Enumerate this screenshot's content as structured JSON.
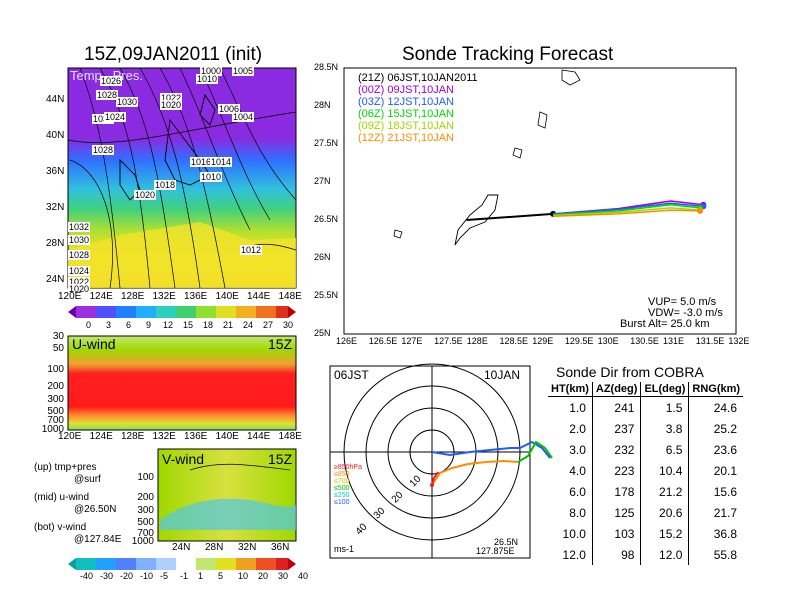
{
  "colors": {
    "purple": "#9b00e0",
    "blue": "#1e5cff",
    "green": "#00d800",
    "yellowgreen": "#a0d800",
    "orange": "#ff8c00",
    "red": "#ff1a1a",
    "black": "#000000"
  },
  "surface": {
    "title": "15Z,09JAN2011 (init)",
    "overlay": "Temp., Pres.",
    "xticks": [
      "120E",
      "124E",
      "128E",
      "132E",
      "136E",
      "140E",
      "144E",
      "148E"
    ],
    "yticks": [
      "44N",
      "40N",
      "36N",
      "32N",
      "28N",
      "24N"
    ],
    "isobars": [
      "1000",
      "1005",
      "1010",
      "1028",
      "1030",
      "1026",
      "1022",
      "1020",
      "1032",
      "1024",
      "1006",
      "1004",
      "1028",
      "1016",
      "1014",
      "1018",
      "1010",
      "1020",
      "1012",
      "1032",
      "1030",
      "1028",
      "1024",
      "1022",
      "1020"
    ],
    "colorbar": [
      "0",
      "3",
      "6",
      "9",
      "12",
      "15",
      "18",
      "21",
      "24",
      "27",
      "30"
    ]
  },
  "uwind": {
    "label": "U-wind",
    "time": "15Z",
    "yticks": [
      "30",
      "50",
      "100",
      "200",
      "300",
      "500",
      "700",
      "1000"
    ],
    "xticks": [
      "120E",
      "124E",
      "128E",
      "132E",
      "136E",
      "140E",
      "144E",
      "148E"
    ]
  },
  "vwind": {
    "label": "V-wind",
    "time": "15Z",
    "yticks": [
      "100",
      "200",
      "300",
      "500",
      "700",
      "1000"
    ],
    "xticks": [
      "24N",
      "28N",
      "32N",
      "36N"
    ],
    "colorbar": [
      "-40",
      "-30",
      "-20",
      "-10",
      "-5",
      "-1",
      "1",
      "5",
      "10",
      "20",
      "30",
      "40"
    ]
  },
  "legend_notes": {
    "up": "(up) tmp+pres",
    "up2": "@surf",
    "mid": "(mid) u-wind",
    "mid2": "@26.50N",
    "bot": "(bot) v-wind",
    "bot2": "@127.84E"
  },
  "track": {
    "title": "Sonde Tracking Forecast",
    "entries": [
      {
        "label": "(21Z)  06JST,10JAN2011",
        "color": "#000000"
      },
      {
        "label": "(00Z)  09JST,10JAN",
        "color": "#9b00e0"
      },
      {
        "label": "(03Z)  12JST,10JAN",
        "color": "#1e5cff"
      },
      {
        "label": "(06Z)  15JST,10JAN",
        "color": "#00d800"
      },
      {
        "label": "(09Z)  18JST,10JAN",
        "color": "#a0d800"
      },
      {
        "label": "(12Z)  21JST,10JAN",
        "color": "#ff8c00"
      }
    ],
    "params": {
      "vup": "VUP=  5.0  m/s",
      "vdw": "VDW= -3.0  m/s",
      "burst": "Burst Alt=  25.0  km"
    },
    "xlim": [
      126,
      132
    ],
    "ylim": [
      25,
      28.5
    ],
    "xticks": [
      "126E",
      "126.5E",
      "127E",
      "127.5E",
      "128E",
      "128.5E",
      "129E",
      "129.5E",
      "130E",
      "130.5E",
      "131E",
      "131.5E",
      "132E"
    ],
    "yticks": [
      "28.5N",
      "28N",
      "27.5N",
      "27N",
      "26.5N",
      "26N",
      "25.5N",
      "25N"
    ]
  },
  "polar": {
    "left": "06JST",
    "right": "10JAN",
    "ring_labels": [
      "10",
      "20",
      "30",
      "40"
    ],
    "levels": [
      {
        "t": "≥850hPa",
        "c": "#ff1a1a"
      },
      {
        "t": "≤850",
        "c": "#ff8c00"
      },
      {
        "t": "≤700",
        "c": "#d8c800"
      },
      {
        "t": "≤500",
        "c": "#00c000"
      },
      {
        "t": "≤250",
        "c": "#00c8c8"
      },
      {
        "t": "≤100",
        "c": "#1e5cff"
      }
    ],
    "unit": "ms-1",
    "lat": "26.5N",
    "lon": "127.875E"
  },
  "direction": {
    "title": "Sonde Dir from COBRA",
    "headers": [
      "HT(km)",
      "AZ(deg)",
      "EL(deg)",
      "RNG(km)"
    ],
    "rows": [
      [
        "1.0",
        "241",
        "1.5",
        "24.6"
      ],
      [
        "2.0",
        "237",
        "3.8",
        "25.2"
      ],
      [
        "3.0",
        "232",
        "6.5",
        "23.6"
      ],
      [
        "4.0",
        "223",
        "10.4",
        "20.1"
      ],
      [
        "6.0",
        "178",
        "21.2",
        "15.6"
      ],
      [
        "8.0",
        "125",
        "20.6",
        "21.7"
      ],
      [
        "10.0",
        "103",
        "15.2",
        "36.8"
      ],
      [
        "12.0",
        "98",
        "12.0",
        "55.8"
      ]
    ]
  },
  "chart_data": [
    {
      "type": "table",
      "title": "Sonde Dir from COBRA",
      "columns": [
        "HT(km)",
        "AZ(deg)",
        "EL(deg)",
        "RNG(km)"
      ],
      "rows": [
        [
          1.0,
          241,
          1.5,
          24.6
        ],
        [
          2.0,
          237,
          3.8,
          25.2
        ],
        [
          3.0,
          232,
          6.5,
          23.6
        ],
        [
          4.0,
          223,
          10.4,
          20.1
        ],
        [
          6.0,
          178,
          21.2,
          15.6
        ],
        [
          8.0,
          125,
          20.6,
          21.7
        ],
        [
          10.0,
          103,
          15.2,
          36.8
        ],
        [
          12.0,
          98,
          12.0,
          55.8
        ]
      ]
    },
    {
      "type": "line",
      "title": "Sonde Tracking Forecast",
      "xlim": [
        126,
        132
      ],
      "ylim": [
        25,
        28.5
      ],
      "series": [
        {
          "name": "(21Z) 06JST,10JAN2011",
          "x": [
            127.875,
            129.2
          ],
          "y": [
            26.5,
            26.58
          ]
        },
        {
          "name": "(00Z) 09JST,10JAN",
          "x": [
            129.2,
            130.2,
            131.0,
            131.5
          ],
          "y": [
            26.58,
            26.65,
            26.75,
            26.7
          ]
        },
        {
          "name": "(03Z) 12JST,10JAN",
          "x": [
            129.2,
            130.2,
            131.0,
            131.5
          ],
          "y": [
            26.58,
            26.64,
            26.72,
            26.68
          ]
        },
        {
          "name": "(06Z) 15JST,10JAN",
          "x": [
            129.2,
            130.2,
            131.0,
            131.45
          ],
          "y": [
            26.57,
            26.62,
            26.7,
            26.66
          ]
        },
        {
          "name": "(09Z) 18JST,10JAN",
          "x": [
            129.2,
            130.2,
            131.0,
            131.45
          ],
          "y": [
            26.56,
            26.6,
            26.66,
            26.63
          ]
        },
        {
          "name": "(12Z) 21JST,10JAN",
          "x": [
            129.2,
            130.2,
            131.0,
            131.45
          ],
          "y": [
            26.55,
            26.58,
            26.63,
            26.62
          ]
        }
      ]
    }
  ]
}
